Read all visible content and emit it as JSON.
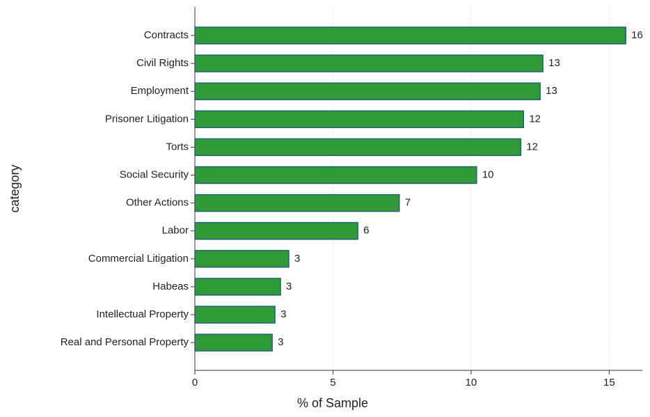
{
  "chart_data": {
    "type": "barh",
    "categories": [
      "Contracts",
      "Civil Rights",
      "Employment",
      "Prisoner Litigation",
      "Torts",
      "Social Security",
      "Other Actions",
      "Labor",
      "Commercial Litigation",
      "Habeas",
      "Intellectual Property",
      "Real and Personal Property"
    ],
    "values": [
      15.6,
      12.6,
      12.5,
      11.9,
      11.8,
      10.2,
      7.4,
      5.9,
      3.4,
      3.1,
      2.9,
      2.8
    ],
    "value_labels": [
      "16",
      "13",
      "13",
      "12",
      "12",
      "10",
      "7",
      "6",
      "3",
      "3",
      "3",
      "3"
    ],
    "color": "#2f9a36",
    "edge_color": "#23607c",
    "xlabel": "% of Sample",
    "ylabel": "category",
    "xlim": [
      0,
      16.2
    ],
    "xticks": [
      0,
      5,
      10,
      15
    ],
    "grid": true
  }
}
